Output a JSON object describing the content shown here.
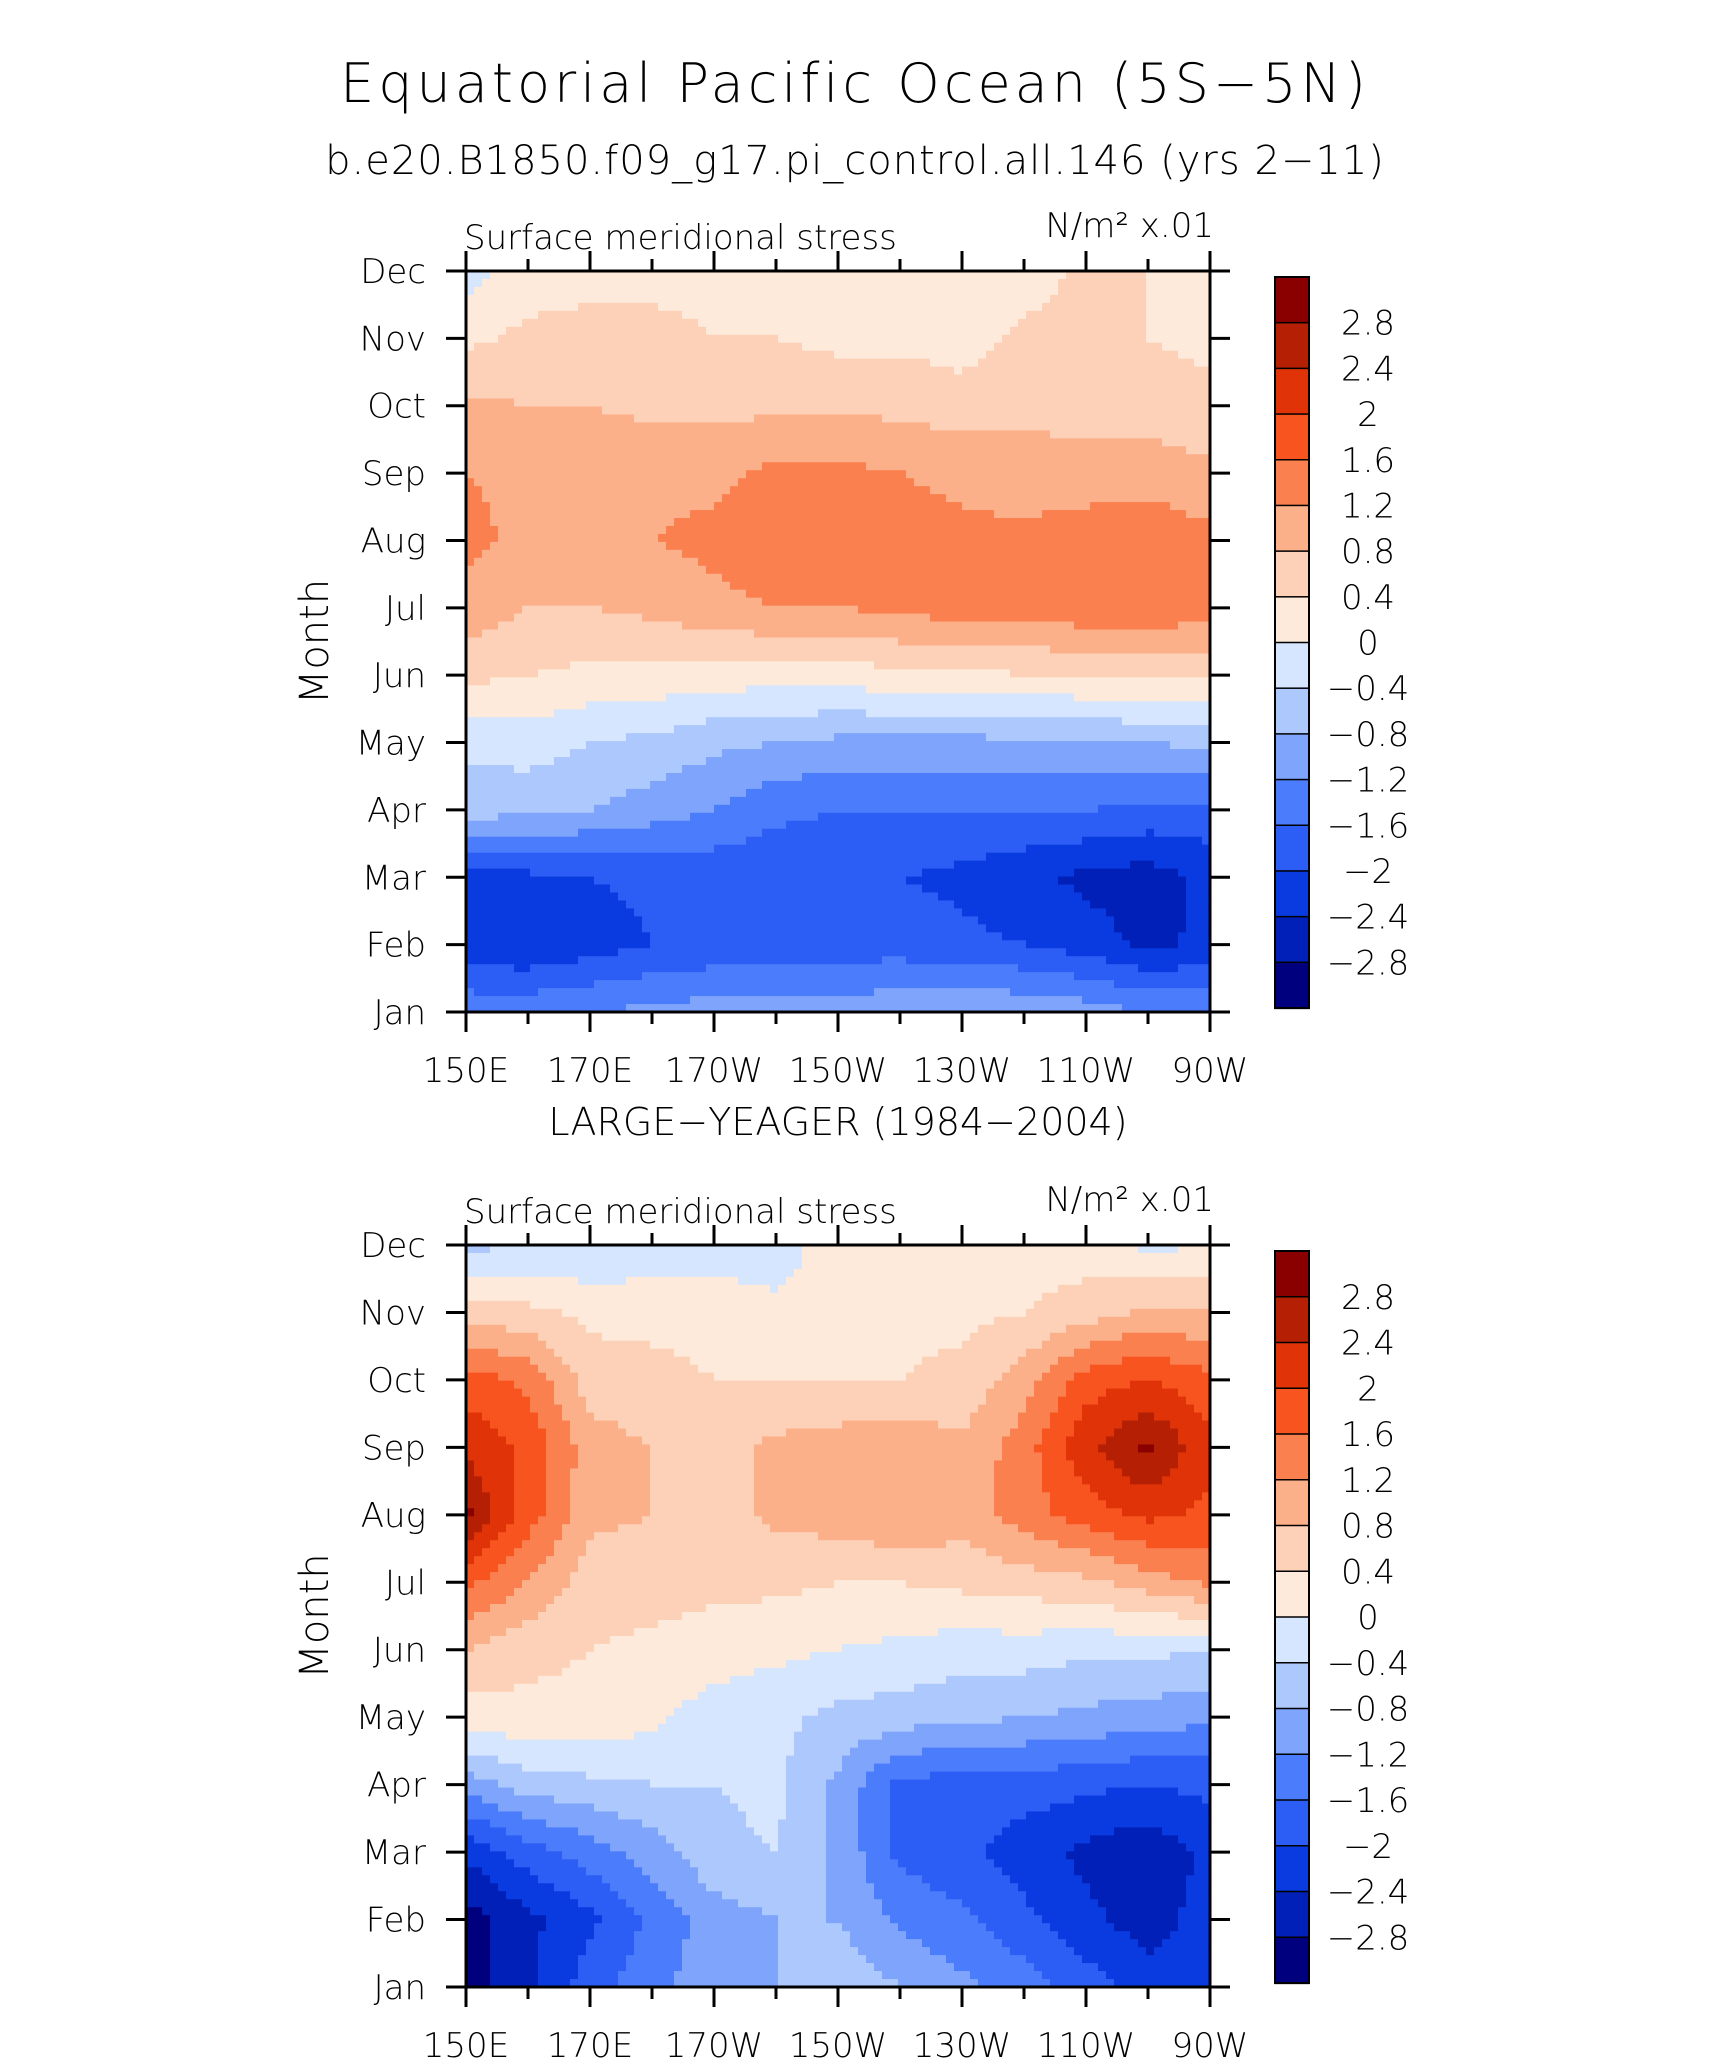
{
  "header": {
    "title": "Equatorial Pacific Ocean (5S−5N)",
    "subtitle": "b.e20.B1850.f09_g17.pi_control.all.146 (yrs 2−11)"
  },
  "colors": {
    "levels": [
      "#00007f",
      "#0020b8",
      "#0a3be0",
      "#2c5ef5",
      "#4a7cfb",
      "#7ea4fc",
      "#adc8fd",
      "#d6e6fe",
      "#fdeadb",
      "#fdd1b8",
      "#fcb08a",
      "#fb8050",
      "#f75420",
      "#e03408",
      "#b52004",
      "#8a0000"
    ],
    "axes": "#000000"
  },
  "chart_data": [
    {
      "type": "heatmap",
      "panel_title": "",
      "left_label": "Surface meridional stress",
      "right_label": "N/m² x.01",
      "ylabel": "Month",
      "x_ticks": [
        "150E",
        "170E",
        "170W",
        "150W",
        "130W",
        "110W",
        "90W"
      ],
      "y_ticks": [
        "Jan",
        "Feb",
        "Mar",
        "Apr",
        "May",
        "Jun",
        "Jul",
        "Aug",
        "Sep",
        "Oct",
        "Nov",
        "Dec"
      ],
      "colorbar_labels": [
        "2.8",
        "2.4",
        "2",
        "1.6",
        "1.2",
        "0.8",
        "0.4",
        "0",
        "−0.4",
        "−0.8",
        "−1.2",
        "−1.6",
        "−2",
        "−2.4",
        "−2.8"
      ],
      "clim": [
        -3.2,
        3.2
      ],
      "x_lon": [
        150,
        160,
        170,
        180,
        190,
        200,
        210,
        220,
        230,
        240,
        250,
        260,
        270
      ],
      "grid": [
        [
          -1.3,
          -1.3,
          -1.2,
          -1.1,
          -1.0,
          -1.0,
          -1.0,
          -0.9,
          -0.8,
          -0.9,
          -1.0,
          -1.2,
          -1.3
        ],
        [
          -2.3,
          -2.4,
          -2.2,
          -2.0,
          -1.9,
          -1.8,
          -1.8,
          -1.8,
          -1.9,
          -2.0,
          -2.2,
          -2.5,
          -2.3
        ],
        [
          -2.2,
          -2.1,
          -2.0,
          -1.9,
          -1.9,
          -1.9,
          -1.9,
          -2.0,
          -2.1,
          -2.3,
          -2.5,
          -2.6,
          -2.3
        ],
        [
          -0.6,
          -0.7,
          -0.8,
          -1.0,
          -1.2,
          -1.5,
          -1.6,
          -1.6,
          -1.6,
          -1.6,
          -1.6,
          -1.7,
          -1.7
        ],
        [
          -0.3,
          -0.2,
          -0.4,
          -0.5,
          -0.7,
          -0.8,
          -0.9,
          -0.9,
          -0.9,
          -0.9,
          -0.8,
          -0.8,
          -0.7
        ],
        [
          0.5,
          0.4,
          0.3,
          0.3,
          0.2,
          0.2,
          0.2,
          0.3,
          0.3,
          0.4,
          0.4,
          0.5,
          0.5
        ],
        [
          1.1,
          0.8,
          0.8,
          0.9,
          1.1,
          1.2,
          1.2,
          1.3,
          1.4,
          1.4,
          1.5,
          1.5,
          1.4
        ],
        [
          1.3,
          1.1,
          1.1,
          1.2,
          1.3,
          1.5,
          1.5,
          1.4,
          1.3,
          1.3,
          1.4,
          1.5,
          1.3
        ],
        [
          1.2,
          1.1,
          1.1,
          1.1,
          1.1,
          1.3,
          1.3,
          1.2,
          1.1,
          1.0,
          1.0,
          1.0,
          0.9
        ],
        [
          0.9,
          0.8,
          0.8,
          0.7,
          0.7,
          0.7,
          0.7,
          0.7,
          0.6,
          0.7,
          0.6,
          0.6,
          0.5
        ],
        [
          0.3,
          0.5,
          0.5,
          0.5,
          0.4,
          0.4,
          0.3,
          0.3,
          0.2,
          0.5,
          0.5,
          0.4,
          0.3
        ],
        [
          -0.2,
          0.2,
          0.3,
          0.3,
          0.3,
          0.3,
          0.3,
          0.2,
          0.1,
          0.2,
          0.5,
          0.4,
          0.3
        ]
      ]
    },
    {
      "type": "heatmap",
      "panel_title": "LARGE−YEAGER (1984−2004)",
      "left_label": "Surface meridional stress",
      "right_label": "N/m² x.01",
      "ylabel": "Month",
      "x_ticks": [
        "150E",
        "170E",
        "170W",
        "150W",
        "130W",
        "110W",
        "90W"
      ],
      "y_ticks": [
        "Jan",
        "Feb",
        "Mar",
        "Apr",
        "May",
        "Jun",
        "Jul",
        "Aug",
        "Sep",
        "Oct",
        "Nov",
        "Dec"
      ],
      "colorbar_labels": [
        "2.8",
        "2.4",
        "2",
        "1.6",
        "1.2",
        "0.8",
        "0.4",
        "0",
        "−0.4",
        "−0.8",
        "−1.2",
        "−1.6",
        "−2",
        "−2.4",
        "−2.8"
      ],
      "clim": [
        -3.2,
        3.2
      ],
      "x_lon": [
        150,
        160,
        170,
        180,
        190,
        200,
        210,
        220,
        230,
        240,
        250,
        260,
        270
      ],
      "grid": [
        [
          -3.0,
          -2.5,
          -1.8,
          -1.3,
          -1.0,
          -0.8,
          -0.5,
          -0.8,
          -1.1,
          -1.4,
          -1.8,
          -2.2,
          -2.3
        ],
        [
          -3.0,
          -2.5,
          -2.1,
          -1.5,
          -1.0,
          -0.8,
          -0.8,
          -1.3,
          -1.5,
          -1.9,
          -2.3,
          -2.6,
          -2.2
        ],
        [
          -2.3,
          -1.8,
          -1.4,
          -1.0,
          -0.5,
          -0.4,
          -0.9,
          -1.7,
          -1.9,
          -2.2,
          -2.5,
          -2.7,
          -2.3
        ],
        [
          -1.0,
          -0.6,
          -0.5,
          -0.4,
          -0.4,
          -0.3,
          -0.9,
          -1.7,
          -1.8,
          -1.8,
          -1.9,
          -2.0,
          -1.9
        ],
        [
          0.2,
          0.3,
          0.3,
          0.1,
          -0.2,
          -0.3,
          -0.5,
          -0.6,
          -0.7,
          -0.8,
          -0.9,
          -1.0,
          -1.1
        ],
        [
          0.8,
          0.5,
          0.4,
          0.3,
          0.2,
          0.1,
          0.0,
          -0.1,
          -0.2,
          -0.2,
          -0.3,
          -0.3,
          -0.4
        ],
        [
          1.7,
          1.2,
          0.6,
          0.6,
          0.5,
          0.5,
          0.4,
          0.4,
          0.5,
          0.6,
          0.7,
          1.0,
          1.3
        ],
        [
          2.9,
          1.8,
          0.9,
          0.8,
          0.6,
          0.9,
          1.0,
          1.2,
          1.0,
          1.4,
          1.8,
          2.1,
          1.9
        ],
        [
          2.3,
          1.9,
          1.0,
          0.8,
          0.6,
          0.9,
          1.0,
          1.1,
          0.9,
          1.4,
          2.3,
          2.9,
          2.1
        ],
        [
          1.8,
          1.5,
          0.6,
          0.5,
          0.4,
          0.4,
          0.4,
          0.4,
          0.5,
          1.0,
          1.8,
          2.0,
          1.7
        ],
        [
          0.6,
          0.5,
          0.3,
          0.3,
          0.3,
          0.1,
          0.2,
          0.3,
          0.3,
          0.4,
          0.6,
          0.9,
          0.8
        ],
        [
          -0.5,
          -0.4,
          -0.4,
          -0.3,
          -0.3,
          -0.2,
          0.2,
          0.2,
          0.2,
          0.2,
          0.2,
          -0.1,
          0.0
        ]
      ]
    }
  ]
}
